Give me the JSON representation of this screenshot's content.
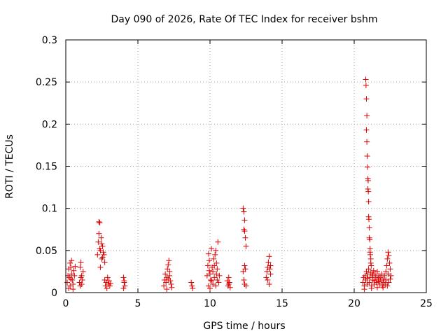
{
  "chart_data": {
    "type": "scatter",
    "title": "Day 090 of 2026, Rate Of TEC Index for receiver bshm",
    "xlabel": "GPS time / hours",
    "ylabel": "ROTI / TECUs",
    "xlim": [
      0,
      25
    ],
    "ylim": [
      0,
      0.3
    ],
    "xticks": [
      0,
      5,
      10,
      15,
      20,
      25
    ],
    "xtick_labels": [
      "0",
      "5",
      "10",
      "15",
      "20",
      "25"
    ],
    "yticks": [
      0,
      0.05,
      0.1,
      0.15,
      0.2,
      0.25,
      0.3
    ],
    "ytick_labels": [
      "0",
      "0.05",
      "0.1",
      "0.15",
      "0.2",
      "0.25",
      "0.3"
    ],
    "grid": true,
    "marker": "+",
    "color": "#e00000",
    "series": [
      {
        "points": [
          [
            0.1,
            0.012
          ],
          [
            0.15,
            0.02
          ],
          [
            0.2,
            0.028
          ],
          [
            0.25,
            0.018
          ],
          [
            0.3,
            0.035
          ],
          [
            0.3,
            0.008
          ],
          [
            0.35,
            0.03
          ],
          [
            0.4,
            0.022
          ],
          [
            0.4,
            0.038
          ],
          [
            0.45,
            0.015
          ],
          [
            0.5,
            0.01
          ],
          [
            0.55,
            0.026
          ],
          [
            0.6,
            0.02
          ],
          [
            0.65,
            0.031
          ],
          [
            0.2,
            0.005
          ],
          [
            0.5,
            0.004
          ],
          [
            0.35,
            0.016
          ],
          [
            0.95,
            0.012
          ],
          [
            1.0,
            0.03
          ],
          [
            1.05,
            0.036
          ],
          [
            1.1,
            0.02
          ],
          [
            1.15,
            0.015
          ],
          [
            1.0,
            0.008
          ],
          [
            1.1,
            0.01
          ],
          [
            1.2,
            0.025
          ],
          [
            1.05,
            0.018
          ],
          [
            2.2,
            0.045
          ],
          [
            2.25,
            0.06
          ],
          [
            2.3,
            0.07
          ],
          [
            2.3,
            0.084
          ],
          [
            2.35,
            0.083
          ],
          [
            2.4,
            0.05
          ],
          [
            2.45,
            0.065
          ],
          [
            2.5,
            0.04
          ],
          [
            2.55,
            0.055
          ],
          [
            2.6,
            0.048
          ],
          [
            2.65,
            0.045
          ],
          [
            2.7,
            0.036
          ],
          [
            2.4,
            0.03
          ],
          [
            2.5,
            0.058
          ],
          [
            2.35,
            0.052
          ],
          [
            2.55,
            0.042
          ],
          [
            2.7,
            0.015
          ],
          [
            2.75,
            0.008
          ],
          [
            2.8,
            0.012
          ],
          [
            2.85,
            0.005
          ],
          [
            2.9,
            0.018
          ],
          [
            2.95,
            0.01
          ],
          [
            3.0,
            0.014
          ],
          [
            3.05,
            0.008
          ],
          [
            3.1,
            0.011
          ],
          [
            4.0,
            0.018
          ],
          [
            4.05,
            0.012
          ],
          [
            4.1,
            0.008
          ],
          [
            4.0,
            0.005
          ],
          [
            4.05,
            0.014
          ],
          [
            6.8,
            0.008
          ],
          [
            6.85,
            0.015
          ],
          [
            6.9,
            0.022
          ],
          [
            6.95,
            0.012
          ],
          [
            7.0,
            0.018
          ],
          [
            7.05,
            0.028
          ],
          [
            7.1,
            0.033
          ],
          [
            7.15,
            0.038
          ],
          [
            7.2,
            0.02
          ],
          [
            7.25,
            0.014
          ],
          [
            7.3,
            0.01
          ],
          [
            7.35,
            0.006
          ],
          [
            7.0,
            0.004
          ],
          [
            7.2,
            0.025
          ],
          [
            7.1,
            0.016
          ],
          [
            8.7,
            0.012
          ],
          [
            8.75,
            0.008
          ],
          [
            8.8,
            0.005
          ],
          [
            9.8,
            0.02
          ],
          [
            9.85,
            0.032
          ],
          [
            9.9,
            0.046
          ],
          [
            9.95,
            0.038
          ],
          [
            10.0,
            0.022
          ],
          [
            10.05,
            0.015
          ],
          [
            10.1,
            0.052
          ],
          [
            10.15,
            0.03
          ],
          [
            10.2,
            0.025
          ],
          [
            10.25,
            0.04
          ],
          [
            10.3,
            0.018
          ],
          [
            10.35,
            0.045
          ],
          [
            10.4,
            0.05
          ],
          [
            10.45,
            0.035
          ],
          [
            10.5,
            0.028
          ],
          [
            10.55,
            0.06
          ],
          [
            10.6,
            0.012
          ],
          [
            10.65,
            0.02
          ],
          [
            9.9,
            0.008
          ],
          [
            10.0,
            0.005
          ],
          [
            10.2,
            0.01
          ],
          [
            10.4,
            0.008
          ],
          [
            10.5,
            0.015
          ],
          [
            10.3,
            0.032
          ],
          [
            10.1,
            0.014
          ],
          [
            9.95,
            0.026
          ],
          [
            10.45,
            0.022
          ],
          [
            11.2,
            0.014
          ],
          [
            11.25,
            0.008
          ],
          [
            11.3,
            0.018
          ],
          [
            11.35,
            0.012
          ],
          [
            11.4,
            0.006
          ],
          [
            11.3,
            0.01
          ],
          [
            12.3,
            0.1
          ],
          [
            12.35,
            0.096
          ],
          [
            12.4,
            0.086
          ],
          [
            12.35,
            0.075
          ],
          [
            12.4,
            0.073
          ],
          [
            12.45,
            0.065
          ],
          [
            12.5,
            0.055
          ],
          [
            12.4,
            0.032
          ],
          [
            12.45,
            0.028
          ],
          [
            12.3,
            0.025
          ],
          [
            12.35,
            0.015
          ],
          [
            12.4,
            0.01
          ],
          [
            12.5,
            0.008
          ],
          [
            13.9,
            0.018
          ],
          [
            13.95,
            0.025
          ],
          [
            14.0,
            0.03
          ],
          [
            14.05,
            0.036
          ],
          [
            14.1,
            0.043
          ],
          [
            14.15,
            0.028
          ],
          [
            14.2,
            0.022
          ],
          [
            14.0,
            0.015
          ],
          [
            14.1,
            0.01
          ],
          [
            14.2,
            0.032
          ],
          [
            20.8,
            0.253
          ],
          [
            20.82,
            0.246
          ],
          [
            20.85,
            0.23
          ],
          [
            20.88,
            0.21
          ],
          [
            20.85,
            0.193
          ],
          [
            20.88,
            0.179
          ],
          [
            20.9,
            0.162
          ],
          [
            20.92,
            0.149
          ],
          [
            20.95,
            0.135
          ],
          [
            20.97,
            0.133
          ],
          [
            20.95,
            0.123
          ],
          [
            20.98,
            0.12
          ],
          [
            21.0,
            0.108
          ],
          [
            21.0,
            0.09
          ],
          [
            21.02,
            0.087
          ],
          [
            21.05,
            0.077
          ],
          [
            21.05,
            0.065
          ],
          [
            21.08,
            0.063
          ],
          [
            21.1,
            0.052
          ],
          [
            21.1,
            0.048
          ],
          [
            21.12,
            0.045
          ],
          [
            21.15,
            0.04
          ],
          [
            21.15,
            0.035
          ],
          [
            21.18,
            0.032
          ],
          [
            20.6,
            0.012
          ],
          [
            20.65,
            0.018
          ],
          [
            20.7,
            0.008
          ],
          [
            20.75,
            0.02
          ],
          [
            20.8,
            0.015
          ],
          [
            20.85,
            0.025
          ],
          [
            20.9,
            0.01
          ],
          [
            20.95,
            0.022
          ],
          [
            21.0,
            0.028
          ],
          [
            21.05,
            0.012
          ],
          [
            21.1,
            0.018
          ],
          [
            21.15,
            0.024
          ],
          [
            21.2,
            0.008
          ],
          [
            21.25,
            0.02
          ],
          [
            21.3,
            0.015
          ],
          [
            21.35,
            0.026
          ],
          [
            21.4,
            0.01
          ],
          [
            21.45,
            0.022
          ],
          [
            21.5,
            0.018
          ],
          [
            21.55,
            0.012
          ],
          [
            21.6,
            0.025
          ],
          [
            21.65,
            0.016
          ],
          [
            21.7,
            0.02
          ],
          [
            21.75,
            0.01
          ],
          [
            21.8,
            0.018
          ],
          [
            21.85,
            0.014
          ],
          [
            21.9,
            0.022
          ],
          [
            21.95,
            0.008
          ],
          [
            22.0,
            0.016
          ],
          [
            22.05,
            0.012
          ],
          [
            22.1,
            0.02
          ],
          [
            22.15,
            0.01
          ],
          [
            22.2,
            0.015
          ],
          [
            20.7,
            0.004
          ],
          [
            21.2,
            0.005
          ],
          [
            21.6,
            0.006
          ],
          [
            22.0,
            0.006
          ],
          [
            21.4,
            0.014
          ],
          [
            20.9,
            0.017
          ],
          [
            21.7,
            0.013
          ],
          [
            21.3,
            0.022
          ],
          [
            22.2,
            0.025
          ],
          [
            22.25,
            0.032
          ],
          [
            22.3,
            0.04
          ],
          [
            22.35,
            0.048
          ],
          [
            22.4,
            0.044
          ],
          [
            22.45,
            0.035
          ],
          [
            22.5,
            0.028
          ],
          [
            22.55,
            0.02
          ],
          [
            22.4,
            0.012
          ],
          [
            22.3,
            0.008
          ],
          [
            22.5,
            0.016
          ],
          [
            22.35,
            0.022
          ]
        ]
      }
    ]
  }
}
